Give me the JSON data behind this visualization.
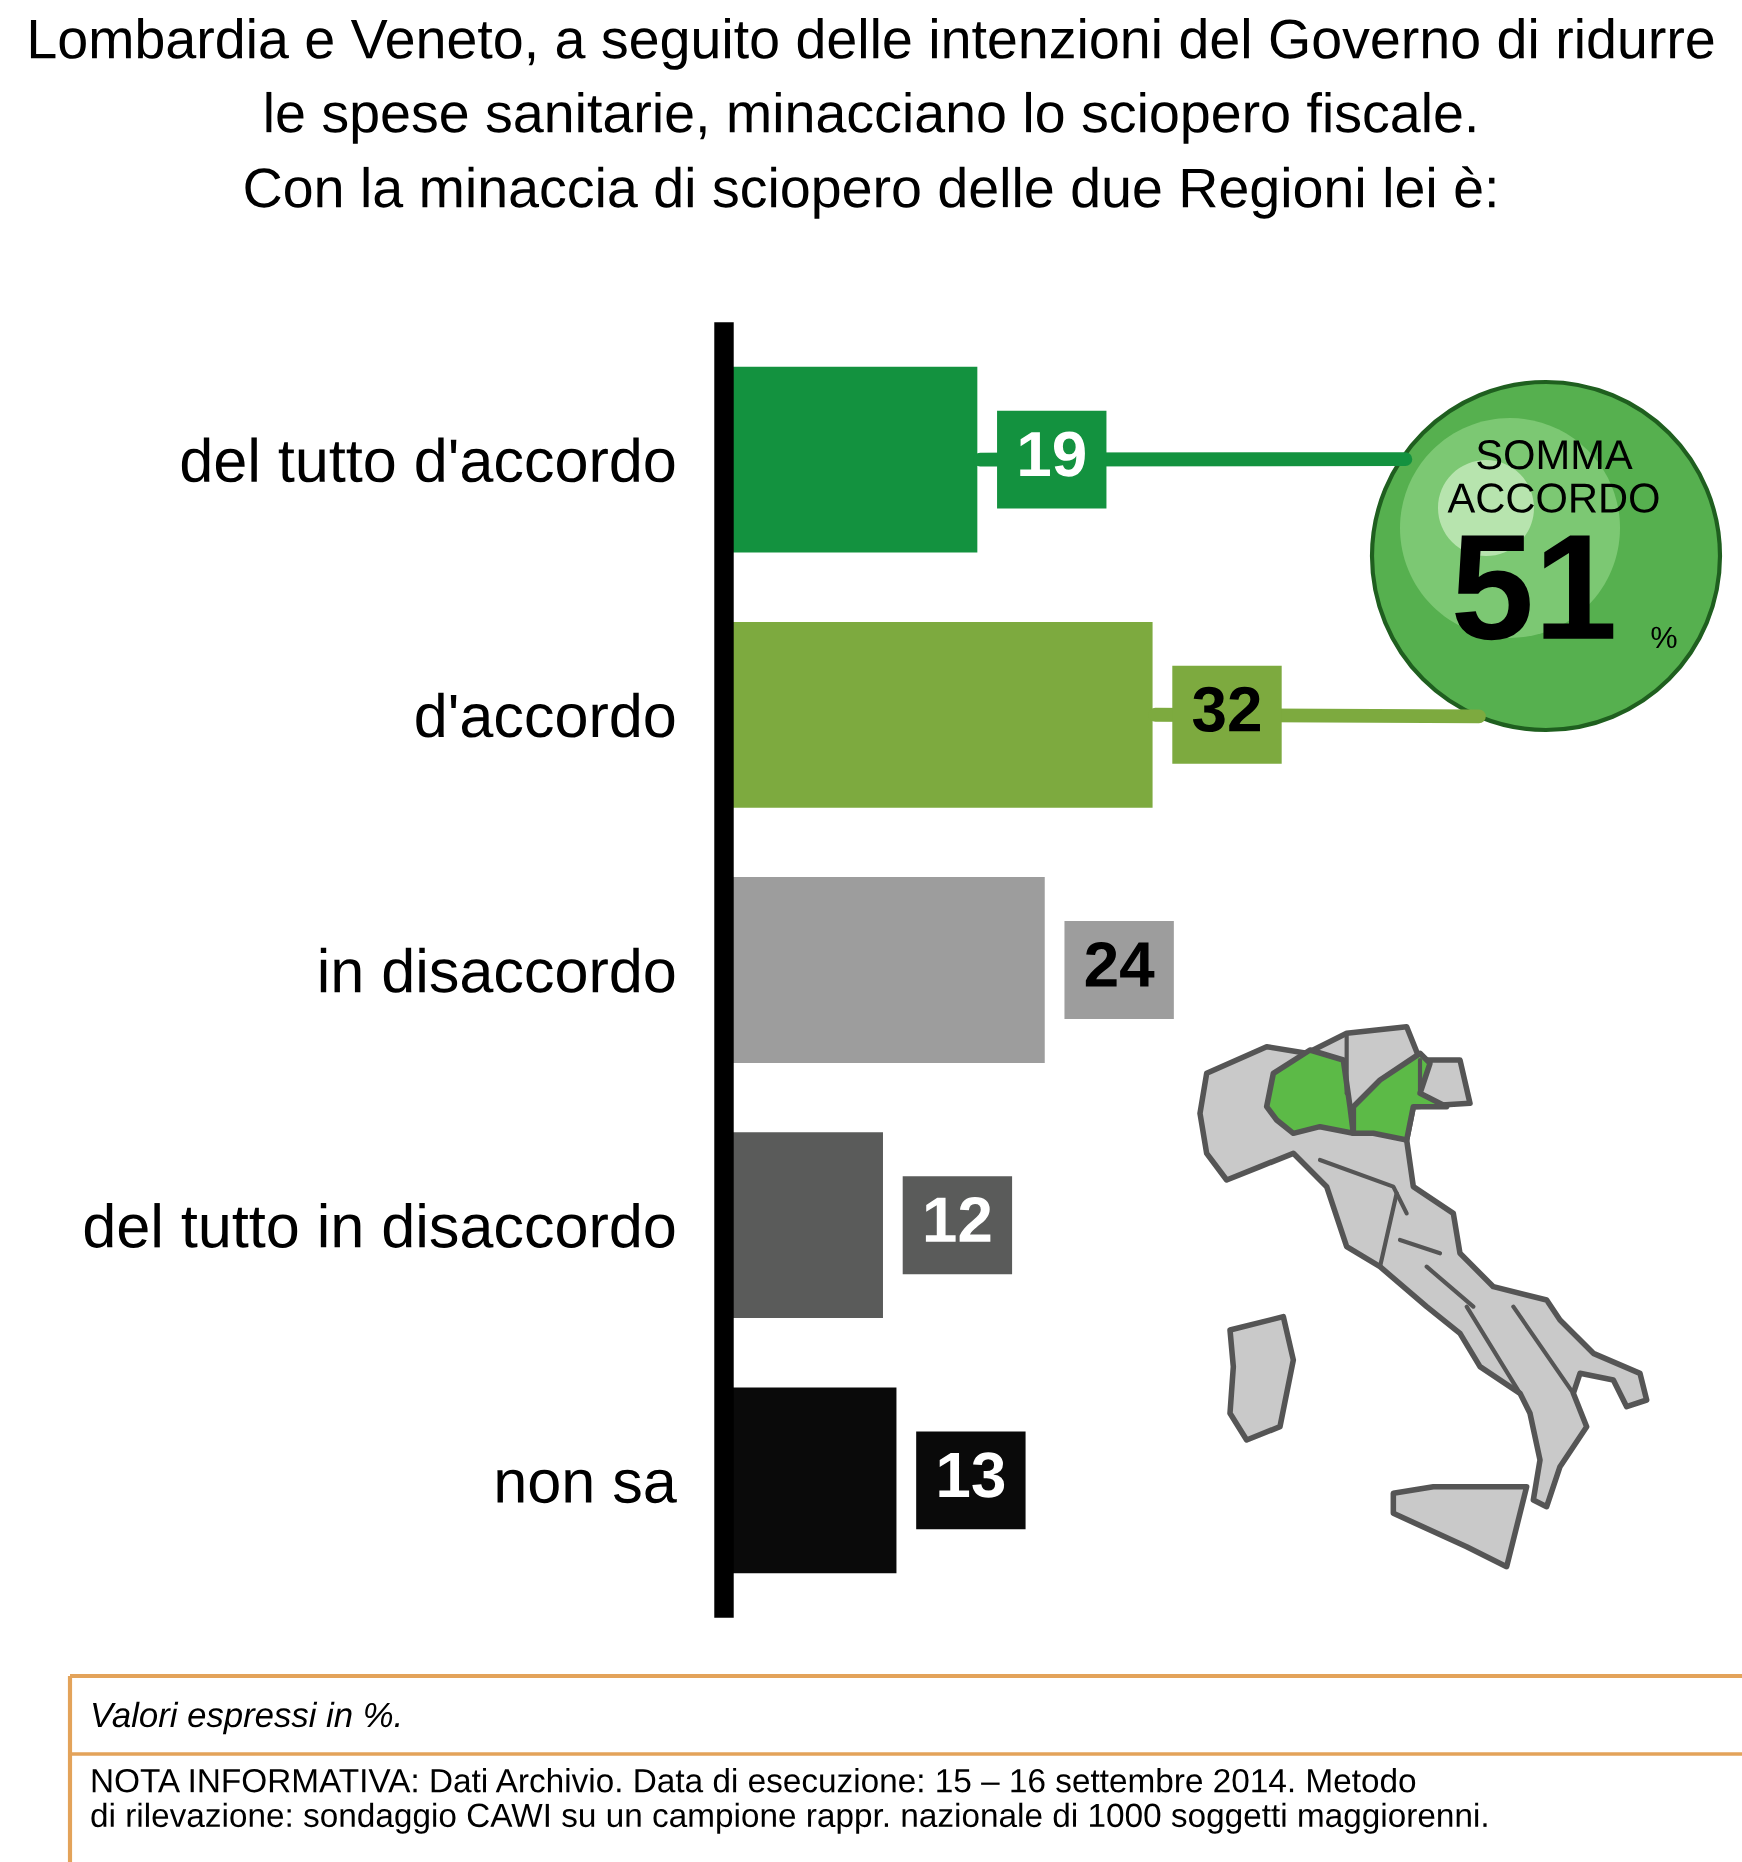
{
  "chart_data": {
    "type": "bar",
    "orientation": "horizontal",
    "title": "Lombardia e Veneto, a seguito delle intenzioni del Governo di ridurre\nle spese sanitarie, minacciano lo sciopero fiscale.\nCon la minaccia di sciopero delle due Regioni lei è:",
    "categories": [
      "del tutto d'accordo",
      "d'accordo",
      "in disaccordo",
      "del tutto in disaccordo",
      "non sa"
    ],
    "values": [
      19,
      32,
      24,
      12,
      13
    ],
    "colors": [
      "#13923f",
      "#7daa3f",
      "#9d9d9d",
      "#5a5b5a",
      "#0a0a0a"
    ],
    "data_labels": true,
    "tick_labels": "y",
    "annotations": [
      {
        "text": "SOMMA\nACCORDO",
        "x": 19,
        "y": "del tutto d'accordo"
      },
      {
        "text": "51",
        "x": 32,
        "y": "d'accordo"
      },
      "%",
      "Valori espressi in %.",
      "NOTA INFORMATIVA: Dati Archivio. Data di esecuzione: 15 – 16 settembre 2014. Metodo\ndi rilevazione: sondaggio CAWI su un campione rappr. nazionale di 1000 soggetti maggiorenni."
    ]
  }
}
